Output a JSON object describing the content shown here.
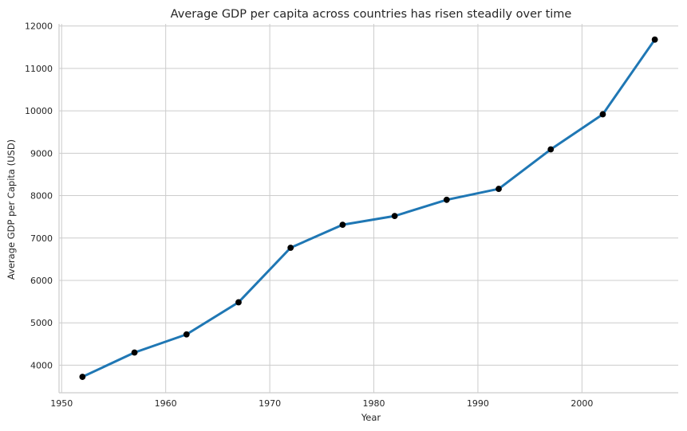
{
  "chart_data": {
    "type": "line",
    "title": "Average GDP per capita across countries has risen steadily over time",
    "xlabel": "Year",
    "ylabel": "Average GDP per Capita (USD)",
    "xlim": [
      1949.75,
      2009.25
    ],
    "ylim": [
      3350,
      12050
    ],
    "xticks": [
      1950,
      1960,
      1970,
      1980,
      1990,
      2000
    ],
    "yticks": [
      4000,
      5000,
      6000,
      7000,
      8000,
      9000,
      10000,
      11000,
      12000
    ],
    "grid": true,
    "colors": {
      "line": "#1f77b4",
      "marker": "#000000",
      "grid": "#cccccc",
      "text": "#262626"
    },
    "series": [
      {
        "x": [
          1952,
          1957,
          1962,
          1967,
          1972,
          1977,
          1982,
          1987,
          1992,
          1997,
          2002,
          2007
        ],
        "y": [
          3725,
          4299,
          4726,
          5484,
          6770,
          7313,
          7519,
          7901,
          8159,
          9090,
          9918,
          11680
        ]
      }
    ]
  }
}
